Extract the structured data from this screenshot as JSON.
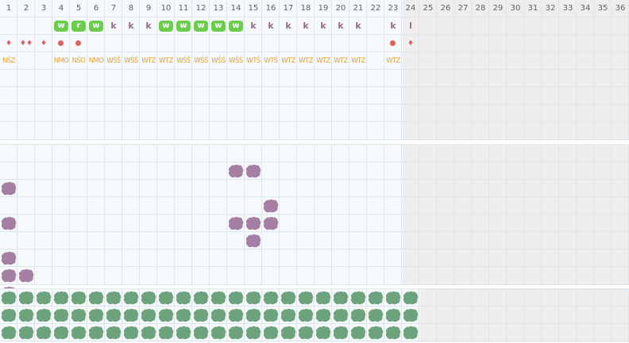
{
  "days": [
    "1",
    "2",
    "3",
    "4",
    "5",
    "6",
    "7",
    "8",
    "9",
    "10",
    "11",
    "12",
    "13",
    "14",
    "15",
    "16",
    "17",
    "18",
    "19",
    "20",
    "21",
    "22",
    "23",
    "24",
    "25",
    "26",
    "27",
    "28",
    "29",
    "30",
    "31",
    "32",
    "33",
    "34",
    "35",
    "36"
  ],
  "colors": {
    "grid_line": "#dbe6ee",
    "cell_bg": "#f5f9fb",
    "disabled_bg": "#eeeeee",
    "chip_green": "#6ccd4d",
    "k_letter": "#9a6b86",
    "drop_red": "#e35d5d",
    "code_orange": "#e4a22c",
    "blob_purple": "#a47fa3",
    "blob_green": "#6ca27c"
  },
  "chips_row": [
    {
      "day": 4,
      "kind": "chip",
      "text": "w"
    },
    {
      "day": 5,
      "kind": "chip",
      "text": "r"
    },
    {
      "day": 6,
      "kind": "chip",
      "text": "w"
    },
    {
      "day": 7,
      "kind": "letter",
      "text": "k"
    },
    {
      "day": 8,
      "kind": "letter",
      "text": "k"
    },
    {
      "day": 9,
      "kind": "letter",
      "text": "k"
    },
    {
      "day": 10,
      "kind": "chip",
      "text": "w"
    },
    {
      "day": 11,
      "kind": "chip",
      "text": "w"
    },
    {
      "day": 12,
      "kind": "chip",
      "text": "w"
    },
    {
      "day": 13,
      "kind": "chip",
      "text": "w"
    },
    {
      "day": 14,
      "kind": "chip",
      "text": "w"
    },
    {
      "day": 15,
      "kind": "letter",
      "text": "k"
    },
    {
      "day": 16,
      "kind": "letter",
      "text": "k"
    },
    {
      "day": 17,
      "kind": "letter",
      "text": "k"
    },
    {
      "day": 18,
      "kind": "letter",
      "text": "k"
    },
    {
      "day": 19,
      "kind": "letter",
      "text": "k"
    },
    {
      "day": 20,
      "kind": "letter",
      "text": "k"
    },
    {
      "day": 21,
      "kind": "letter",
      "text": "k"
    },
    {
      "day": 23,
      "kind": "letter",
      "text": "k"
    },
    {
      "day": 24,
      "kind": "letter",
      "text": "l"
    }
  ],
  "marks_row": [
    {
      "day": 1,
      "kind": "drop",
      "text": "♦"
    },
    {
      "day": 2,
      "kind": "drop",
      "text": "♦♦"
    },
    {
      "day": 3,
      "kind": "drop",
      "text": "♦"
    },
    {
      "day": 4,
      "kind": "dot"
    },
    {
      "day": 5,
      "kind": "dot"
    },
    {
      "day": 23,
      "kind": "dot"
    },
    {
      "day": 24,
      "kind": "drop",
      "text": "♦"
    }
  ],
  "codes_row": [
    {
      "day": 1,
      "text": "NŚZ"
    },
    {
      "day": 4,
      "text": "NMO"
    },
    {
      "day": 5,
      "text": "NŚO"
    },
    {
      "day": 6,
      "text": "NMO"
    },
    {
      "day": 7,
      "text": "WŚŚ"
    },
    {
      "day": 8,
      "text": "WŚŚ"
    },
    {
      "day": 9,
      "text": "WTZ"
    },
    {
      "day": 10,
      "text": "WTZ"
    },
    {
      "day": 11,
      "text": "WŚŚ"
    },
    {
      "day": 12,
      "text": "WŚŚ"
    },
    {
      "day": 13,
      "text": "WŚŚ"
    },
    {
      "day": 14,
      "text": "WŚŚ"
    },
    {
      "day": 15,
      "text": "WTŚ"
    },
    {
      "day": 16,
      "text": "WTŚ"
    },
    {
      "day": 17,
      "text": "WTZ"
    },
    {
      "day": 18,
      "text": "WTZ"
    },
    {
      "day": 19,
      "text": "WTZ"
    },
    {
      "day": 20,
      "text": "WTZ"
    },
    {
      "day": 21,
      "text": "WTZ"
    },
    {
      "day": 23,
      "text": "WTZ"
    }
  ],
  "purple_blobs": [
    {
      "day": 14,
      "row": 1
    },
    {
      "day": 15,
      "row": 1
    },
    {
      "day": 1,
      "row": 2
    },
    {
      "day": 16,
      "row": 3
    },
    {
      "day": 1,
      "row": 4
    },
    {
      "day": 14,
      "row": 4
    },
    {
      "day": 15,
      "row": 4
    },
    {
      "day": 16,
      "row": 4
    },
    {
      "day": 15,
      "row": 5
    },
    {
      "day": 1,
      "row": 6
    },
    {
      "day": 1,
      "row": 7
    },
    {
      "day": 2,
      "row": 7
    },
    {
      "day": 1,
      "row": 8
    }
  ],
  "green_rows": 3,
  "green_days": 24,
  "active_days": 23
}
